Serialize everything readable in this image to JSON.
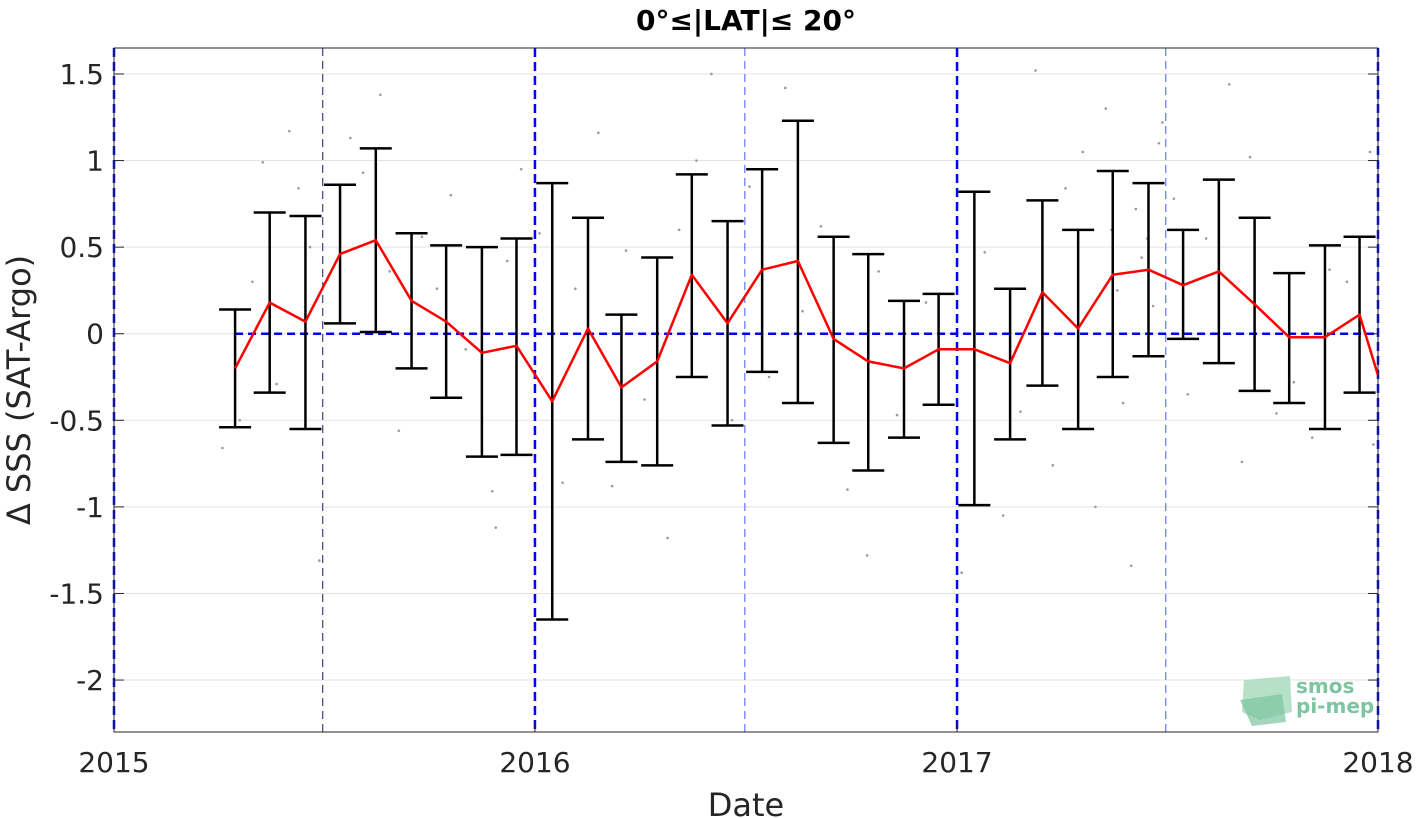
{
  "chart_data": {
    "type": "line",
    "title": "0°≤|LAT|≤ 20°",
    "xlabel": "Date",
    "ylabel": "Δ SSS (SAT-Argo)",
    "xlim": [
      "2015-01-01",
      "2018-01-01"
    ],
    "ylim": [
      -2.3,
      1.65
    ],
    "xticks": [
      {
        "date": "2015-01-01",
        "label": "2015"
      },
      {
        "date": "2016-01-01",
        "label": "2016"
      },
      {
        "date": "2017-01-01",
        "label": "2017"
      },
      {
        "date": "2018-01-01",
        "label": "2018"
      }
    ],
    "yticks": [
      {
        "value": 1.5,
        "label": "1.5"
      },
      {
        "value": 1,
        "label": "1"
      },
      {
        "value": 0.5,
        "label": "0.5"
      },
      {
        "value": 0,
        "label": "0"
      },
      {
        "value": -0.5,
        "label": "-0.5"
      },
      {
        "value": -1,
        "label": "-1"
      },
      {
        "value": -1.5,
        "label": "-1.5"
      },
      {
        "value": -2,
        "label": "-2"
      }
    ],
    "grid": true,
    "reference_line": {
      "value": 0,
      "color": "#0000ff",
      "style": "dashed"
    },
    "year_lines": [
      "2015-01-01",
      "2016-01-01",
      "2017-01-01",
      "2018-01-01"
    ],
    "half_year_lines": [
      "2015-07-01",
      "2016-07-01",
      "2017-07-01"
    ],
    "series": [
      {
        "color": "#ff0000",
        "errorbar_color": "#000000",
        "points": [
          {
            "x": "2015-04-16",
            "y": -0.2,
            "lo": -0.54,
            "hi": 0.14
          },
          {
            "x": "2015-05-16",
            "y": 0.18,
            "lo": -0.34,
            "hi": 0.7
          },
          {
            "x": "2015-06-16",
            "y": 0.07,
            "lo": -0.55,
            "hi": 0.68
          },
          {
            "x": "2015-07-16",
            "y": 0.46,
            "lo": 0.06,
            "hi": 0.86
          },
          {
            "x": "2015-08-16",
            "y": 0.54,
            "lo": 0.01,
            "hi": 1.07
          },
          {
            "x": "2015-09-16",
            "y": 0.19,
            "lo": -0.2,
            "hi": 0.58
          },
          {
            "x": "2015-10-16",
            "y": 0.07,
            "lo": -0.37,
            "hi": 0.51
          },
          {
            "x": "2015-11-16",
            "y": -0.11,
            "lo": -0.71,
            "hi": 0.5
          },
          {
            "x": "2015-12-16",
            "y": -0.07,
            "lo": -0.7,
            "hi": 0.55
          },
          {
            "x": "2016-01-16",
            "y": -0.39,
            "lo": -1.65,
            "hi": 0.87
          },
          {
            "x": "2016-02-16",
            "y": 0.03,
            "lo": -0.61,
            "hi": 0.67
          },
          {
            "x": "2016-03-16",
            "y": -0.31,
            "lo": -0.74,
            "hi": 0.11
          },
          {
            "x": "2016-04-16",
            "y": -0.16,
            "lo": -0.76,
            "hi": 0.44
          },
          {
            "x": "2016-05-16",
            "y": 0.34,
            "lo": -0.25,
            "hi": 0.92
          },
          {
            "x": "2016-06-16",
            "y": 0.06,
            "lo": -0.53,
            "hi": 0.65
          },
          {
            "x": "2016-07-16",
            "y": 0.37,
            "lo": -0.22,
            "hi": 0.95
          },
          {
            "x": "2016-08-16",
            "y": 0.42,
            "lo": -0.4,
            "hi": 1.23
          },
          {
            "x": "2016-09-16",
            "y": -0.03,
            "lo": -0.63,
            "hi": 0.56
          },
          {
            "x": "2016-10-16",
            "y": -0.16,
            "lo": -0.79,
            "hi": 0.46
          },
          {
            "x": "2016-11-16",
            "y": -0.2,
            "lo": -0.6,
            "hi": 0.19
          },
          {
            "x": "2016-12-16",
            "y": -0.09,
            "lo": -0.41,
            "hi": 0.23
          },
          {
            "x": "2017-01-16",
            "y": -0.09,
            "lo": -0.99,
            "hi": 0.82
          },
          {
            "x": "2017-02-16",
            "y": -0.17,
            "lo": -0.61,
            "hi": 0.26
          },
          {
            "x": "2017-03-16",
            "y": 0.24,
            "lo": -0.3,
            "hi": 0.77
          },
          {
            "x": "2017-04-16",
            "y": 0.03,
            "lo": -0.55,
            "hi": 0.6
          },
          {
            "x": "2017-05-16",
            "y": 0.34,
            "lo": -0.25,
            "hi": 0.94
          },
          {
            "x": "2017-06-16",
            "y": 0.37,
            "lo": -0.13,
            "hi": 0.87
          },
          {
            "x": "2017-07-16",
            "y": 0.28,
            "lo": -0.03,
            "hi": 0.6
          },
          {
            "x": "2017-08-16",
            "y": 0.36,
            "lo": -0.17,
            "hi": 0.89
          },
          {
            "x": "2017-09-16",
            "y": 0.17,
            "lo": -0.33,
            "hi": 0.67
          },
          {
            "x": "2017-10-16",
            "y": -0.02,
            "lo": -0.4,
            "hi": 0.35
          },
          {
            "x": "2017-11-16",
            "y": -0.02,
            "lo": -0.55,
            "hi": 0.51
          },
          {
            "x": "2017-12-16",
            "y": 0.11,
            "lo": -0.34,
            "hi": 0.56
          },
          {
            "x": "2018-01-01",
            "y": -0.24
          }
        ]
      }
    ],
    "scatter": {
      "color": "#9a9a9a",
      "points": [
        {
          "x": "2015-04-05",
          "y": -0.66
        },
        {
          "x": "2015-04-20",
          "y": -0.5
        },
        {
          "x": "2015-05-01",
          "y": 0.3
        },
        {
          "x": "2015-05-22",
          "y": -0.29
        },
        {
          "x": "2015-06-02",
          "y": 1.17
        },
        {
          "x": "2015-06-10",
          "y": 0.84
        },
        {
          "x": "2015-06-20",
          "y": 0.5
        },
        {
          "x": "2015-06-28",
          "y": -1.31
        },
        {
          "x": "2015-05-10",
          "y": 0.99
        },
        {
          "x": "2015-07-05",
          "y": 0.31
        },
        {
          "x": "2015-07-25",
          "y": 1.13
        },
        {
          "x": "2015-08-05",
          "y": 0.93
        },
        {
          "x": "2015-08-20",
          "y": 1.38
        },
        {
          "x": "2015-08-28",
          "y": 0.36
        },
        {
          "x": "2015-09-05",
          "y": -0.56
        },
        {
          "x": "2015-09-25",
          "y": 0.56
        },
        {
          "x": "2015-10-08",
          "y": 0.26
        },
        {
          "x": "2015-10-20",
          "y": 0.8
        },
        {
          "x": "2015-11-02",
          "y": -0.09
        },
        {
          "x": "2015-11-25",
          "y": -0.91
        },
        {
          "x": "2015-11-28",
          "y": -1.12
        },
        {
          "x": "2015-12-08",
          "y": 0.42
        },
        {
          "x": "2015-12-20",
          "y": 0.95
        },
        {
          "x": "2016-01-05",
          "y": 0.58
        },
        {
          "x": "2016-01-25",
          "y": -0.86
        },
        {
          "x": "2016-02-05",
          "y": 0.26
        },
        {
          "x": "2016-02-25",
          "y": 1.16
        },
        {
          "x": "2016-03-08",
          "y": -0.88
        },
        {
          "x": "2016-03-20",
          "y": 0.48
        },
        {
          "x": "2016-04-05",
          "y": -0.38
        },
        {
          "x": "2016-04-25",
          "y": -1.18
        },
        {
          "x": "2016-05-05",
          "y": 0.6
        },
        {
          "x": "2016-05-20",
          "y": 1.0
        },
        {
          "x": "2016-06-02",
          "y": 1.5
        },
        {
          "x": "2016-06-20",
          "y": -0.5
        },
        {
          "x": "2016-07-05",
          "y": 0.85
        },
        {
          "x": "2016-07-22",
          "y": -0.25
        },
        {
          "x": "2016-08-05",
          "y": 1.42
        },
        {
          "x": "2016-08-20",
          "y": 0.13
        },
        {
          "x": "2016-09-05",
          "y": 0.62
        },
        {
          "x": "2016-09-28",
          "y": -0.9
        },
        {
          "x": "2016-10-15",
          "y": -1.28
        },
        {
          "x": "2016-10-25",
          "y": 0.36
        },
        {
          "x": "2016-11-10",
          "y": -0.47
        },
        {
          "x": "2016-12-05",
          "y": 0.18
        },
        {
          "x": "2017-01-05",
          "y": -1.38
        },
        {
          "x": "2017-01-25",
          "y": 0.47
        },
        {
          "x": "2017-02-10",
          "y": -1.05
        },
        {
          "x": "2017-02-25",
          "y": -0.45
        },
        {
          "x": "2017-03-10",
          "y": 1.52
        },
        {
          "x": "2017-03-25",
          "y": -0.76
        },
        {
          "x": "2017-04-05",
          "y": 0.84
        },
        {
          "x": "2017-04-20",
          "y": 1.05
        },
        {
          "x": "2017-05-01",
          "y": -1.0
        },
        {
          "x": "2017-05-10",
          "y": 1.3
        },
        {
          "x": "2017-05-15",
          "y": 0.6
        },
        {
          "x": "2017-05-20",
          "y": 0.25
        },
        {
          "x": "2017-05-25",
          "y": -0.4
        },
        {
          "x": "2017-06-01",
          "y": -1.34
        },
        {
          "x": "2017-06-05",
          "y": 0.72
        },
        {
          "x": "2017-06-10",
          "y": 0.44
        },
        {
          "x": "2017-06-15",
          "y": 0.55
        },
        {
          "x": "2017-06-20",
          "y": 0.16
        },
        {
          "x": "2017-06-25",
          "y": 1.1
        },
        {
          "x": "2017-06-28",
          "y": 1.22
        },
        {
          "x": "2017-07-08",
          "y": 0.78
        },
        {
          "x": "2017-07-20",
          "y": -0.35
        },
        {
          "x": "2017-08-05",
          "y": 0.55
        },
        {
          "x": "2017-08-25",
          "y": 1.44
        },
        {
          "x": "2017-09-05",
          "y": -0.74
        },
        {
          "x": "2017-09-12",
          "y": 1.02
        },
        {
          "x": "2017-10-05",
          "y": -0.46
        },
        {
          "x": "2017-10-20",
          "y": -0.28
        },
        {
          "x": "2017-11-05",
          "y": -0.6
        },
        {
          "x": "2017-11-20",
          "y": 0.37
        },
        {
          "x": "2017-12-05",
          "y": 0.3
        },
        {
          "x": "2017-12-25",
          "y": 1.05
        },
        {
          "x": "2017-12-28",
          "y": -0.64
        }
      ]
    }
  },
  "watermark": {
    "line1": "smos",
    "line2": "pi-mep"
  }
}
